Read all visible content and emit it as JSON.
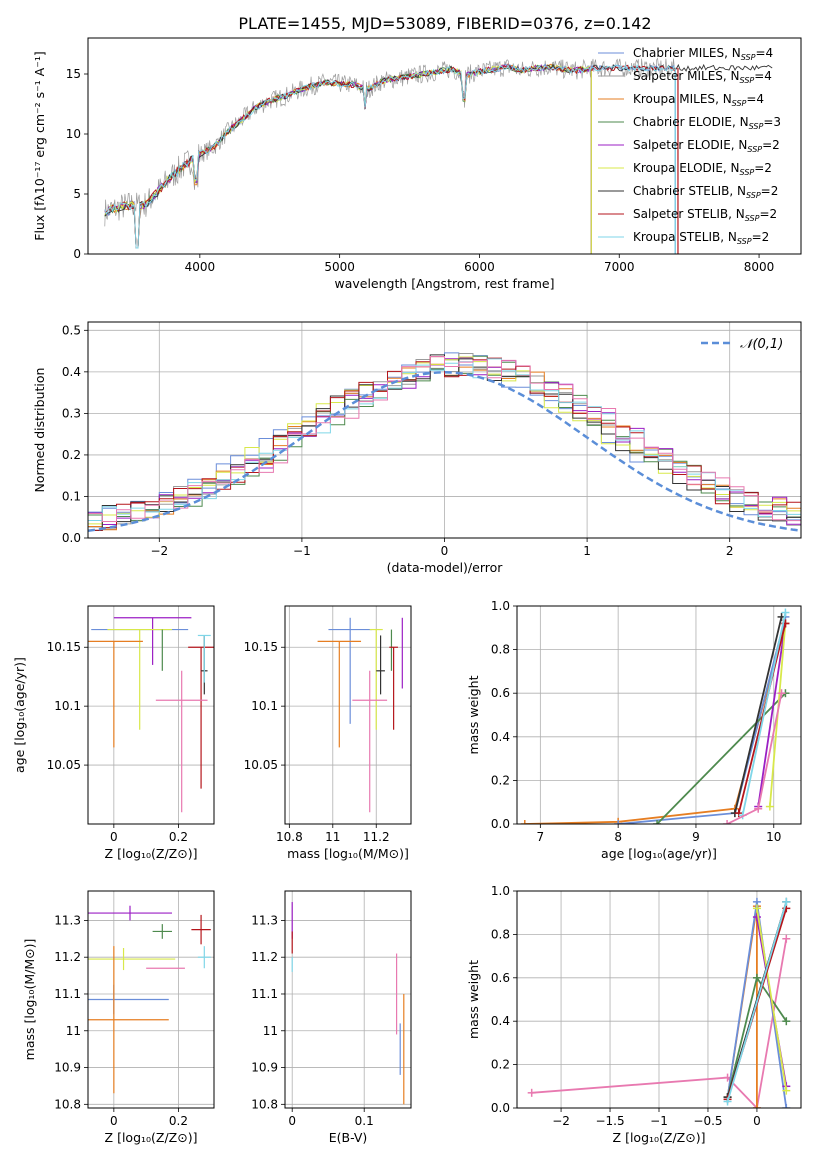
{
  "figure_title": "PLATE=1455, MJD=53089, FIBERID=0376, z=0.142",
  "colors": {
    "Chabrier MILES": "#6b8ed9",
    "Salpeter MILES": "#9b9b9b",
    "Kroupa MILES": "#e67e22",
    "Chabrier ELODIE": "#4e8a4e",
    "Salpeter ELODIE": "#9b1fc4",
    "Kroupa ELODIE": "#d8e84a",
    "Chabrier STELIB": "#333333",
    "Salpeter STELIB": "#b5161c",
    "Kroupa STELIB": "#7fd6e8",
    "extra pink": "#e879b0",
    "gauss": "#5b8ed8"
  },
  "chart_data": [
    {
      "id": "spectrum",
      "type": "line",
      "title": "PLATE=1455, MJD=53089, FIBERID=0376, z=0.142",
      "xlabel": "wavelength [Angstrom, rest frame]",
      "ylabel": "Flux [fλ10⁻¹⁷ erg cm⁻² s⁻¹ A⁻¹]",
      "xlim": [
        3200,
        8300
      ],
      "ylim": [
        0,
        18
      ],
      "xticks": [
        4000,
        5000,
        6000,
        7000,
        8000
      ],
      "yticks": [
        0,
        5,
        10,
        15
      ],
      "grid": false,
      "legend_position": "right",
      "legend": [
        {
          "name": "Chabrier MILES",
          "nssp": "4"
        },
        {
          "name": "Salpeter MILES",
          "nssp": "4"
        },
        {
          "name": "Kroupa MILES",
          "nssp": "4"
        },
        {
          "name": "Chabrier ELODIE",
          "nssp": "3"
        },
        {
          "name": "Salpeter ELODIE",
          "nssp": "2"
        },
        {
          "name": "Kroupa ELODIE",
          "nssp": "2"
        },
        {
          "name": "Chabrier STELIB",
          "nssp": "2"
        },
        {
          "name": "Salpeter STELIB",
          "nssp": "2"
        },
        {
          "name": "Kroupa STELIB",
          "nssp": "2"
        }
      ],
      "data_series": {
        "x": [
          3320,
          3400,
          3500,
          3600,
          3700,
          3800,
          3900,
          4000,
          4100,
          4200,
          4300,
          4400,
          4500,
          4600,
          4700,
          4800,
          4900,
          5000,
          5100,
          5200,
          5300,
          5400,
          5500,
          5600,
          5700,
          5800,
          5900,
          6000,
          6100,
          6200,
          6300,
          6400,
          6500,
          6600,
          6700,
          6800
        ],
        "y": [
          3.5,
          3.8,
          4.1,
          4.0,
          5.2,
          6.5,
          7.5,
          8.3,
          8.9,
          10.2,
          11.2,
          12.2,
          12.8,
          13.1,
          13.6,
          14.0,
          14.3,
          14.2,
          14.1,
          13.7,
          14.4,
          14.6,
          14.8,
          15.0,
          15.2,
          15.4,
          14.9,
          15.2,
          15.4,
          15.6,
          15.3,
          15.5,
          15.6,
          15.4,
          15.3,
          15.5
        ]
      }
    },
    {
      "id": "residuals",
      "type": "bar",
      "xlabel": "(data-model)/error",
      "ylabel": "Normed distribution",
      "xlim": [
        -2.5,
        2.5
      ],
      "ylim": [
        0,
        0.52
      ],
      "xticks": [
        -2,
        -1,
        0,
        1,
        2
      ],
      "yticks": [
        0.0,
        0.1,
        0.2,
        0.3,
        0.4,
        0.5
      ],
      "grid": true,
      "legend_position": "top-right",
      "gauss_label": "𝒩(0,1)",
      "gauss_mu": 0,
      "gauss_sigma": 1
    },
    {
      "id": "age-vs-Z",
      "type": "scatter",
      "xlabel": "Z [log₁₀(Z/Z⊙)]",
      "ylabel": "age  [log₁₀(age/yr)]",
      "xlim": [
        -0.08,
        0.31
      ],
      "ylim": [
        10.0,
        10.185
      ],
      "xticks": [
        0.0,
        0.2
      ],
      "yticks": [
        10.05,
        10.1,
        10.15
      ],
      "grid": true,
      "points": [
        {
          "series": "Chabrier MILES",
          "x": 0.08,
          "y": 10.165,
          "xerr": 0.15,
          "yerr_lo": 0.0,
          "yerr_hi": 0.0
        },
        {
          "series": "Salpeter ELODIE",
          "x": 0.12,
          "y": 10.175,
          "xerr": 0.12,
          "yerr_lo": 0.04,
          "yerr_hi": 0.0
        },
        {
          "series": "Kroupa ELODIE",
          "x": 0.08,
          "y": 10.165,
          "xerr": 0.1,
          "yerr_lo": 0.085,
          "yerr_hi": 0.0
        },
        {
          "series": "Kroupa MILES",
          "x": 0.0,
          "y": 10.155,
          "xerr": 0.09,
          "yerr_lo": 0.09,
          "yerr_hi": 0.0
        },
        {
          "series": "Chabrier ELODIE",
          "x": 0.15,
          "y": 10.165,
          "xerr": 0.0,
          "yerr_lo": 0.035,
          "yerr_hi": 0.0
        },
        {
          "series": "Salpeter STELIB",
          "x": 0.27,
          "y": 10.15,
          "xerr": 0.04,
          "yerr_lo": 0.12,
          "yerr_hi": 0.0
        },
        {
          "series": "Chabrier STELIB",
          "x": 0.28,
          "y": 10.13,
          "xerr": 0.01,
          "yerr_lo": 0.02,
          "yerr_hi": 0.03
        },
        {
          "series": "Kroupa STELIB",
          "x": 0.28,
          "y": 10.16,
          "xerr": 0.02,
          "yerr_lo": 0.04,
          "yerr_hi": 0.0
        },
        {
          "series": "extra pink",
          "x": 0.21,
          "y": 10.105,
          "xerr": 0.08,
          "yerr_lo": 0.095,
          "yerr_hi": 0.025
        }
      ]
    },
    {
      "id": "age-vs-mass",
      "type": "scatter",
      "xlabel": "mass [log₁₀(M/M⊙)]",
      "ylabel": "",
      "xlim": [
        10.78,
        11.36
      ],
      "ylim": [
        10.0,
        10.185
      ],
      "xticks": [
        10.8,
        11.0,
        11.2
      ],
      "yticks": [
        10.05,
        10.1,
        10.15
      ],
      "grid": true,
      "points": [
        {
          "series": "Chabrier MILES",
          "x": 11.08,
          "y": 10.165,
          "xerr": 0.1,
          "yerr_lo": 0.08,
          "yerr_hi": 0.01
        },
        {
          "series": "Kroupa MILES",
          "x": 11.03,
          "y": 10.155,
          "xerr": 0.1,
          "yerr_lo": 0.09,
          "yerr_hi": 0.0
        },
        {
          "series": "Kroupa ELODIE",
          "x": 11.2,
          "y": 10.165,
          "xerr": 0.03,
          "yerr_lo": 0.085,
          "yerr_hi": 0.0
        },
        {
          "series": "Chabrier ELODIE",
          "x": 11.27,
          "y": 10.165,
          "xerr": 0.0,
          "yerr_lo": 0.035,
          "yerr_hi": 0.0
        },
        {
          "series": "Salpeter ELODIE",
          "x": 11.32,
          "y": 10.175,
          "xerr": 0.0,
          "yerr_lo": 0.06,
          "yerr_hi": 0.0
        },
        {
          "series": "Salpeter STELIB",
          "x": 11.28,
          "y": 10.15,
          "xerr": 0.02,
          "yerr_lo": 0.07,
          "yerr_hi": 0.0
        },
        {
          "series": "Chabrier STELIB",
          "x": 11.22,
          "y": 10.13,
          "xerr": 0.02,
          "yerr_lo": 0.02,
          "yerr_hi": 0.03
        },
        {
          "series": "extra pink",
          "x": 11.17,
          "y": 10.105,
          "xerr": 0.08,
          "yerr_lo": 0.095,
          "yerr_hi": 0.025
        }
      ]
    },
    {
      "id": "mass-weight-vs-age",
      "type": "line",
      "xlabel": "age  [log₁₀(age/yr)]",
      "ylabel": "mass weight",
      "xlim": [
        6.7,
        10.35
      ],
      "ylim": [
        0.0,
        1.0
      ],
      "xticks": [
        7,
        8,
        9,
        10
      ],
      "yticks": [
        0.0,
        0.2,
        0.4,
        0.6,
        0.8,
        1.0
      ],
      "grid": true,
      "series": [
        {
          "series": "Kroupa MILES",
          "x": [
            6.8,
            8.0,
            9.5,
            10.15
          ],
          "y": [
            0.0,
            0.01,
            0.07,
            0.92
          ]
        },
        {
          "series": "Chabrier MILES",
          "x": [
            8.0,
            9.5,
            10.15
          ],
          "y": [
            0.0,
            0.05,
            0.95
          ]
        },
        {
          "series": "Chabrier ELODIE",
          "x": [
            8.5,
            10.15
          ],
          "y": [
            0.0,
            0.6
          ]
        },
        {
          "series": "Salpeter ELODIE",
          "x": [
            9.8,
            10.15
          ],
          "y": [
            0.08,
            0.92
          ]
        },
        {
          "series": "Kroupa ELODIE",
          "x": [
            9.95,
            10.15
          ],
          "y": [
            0.08,
            0.92
          ]
        },
        {
          "series": "Chabrier STELIB",
          "x": [
            9.5,
            10.1
          ],
          "y": [
            0.05,
            0.95
          ]
        },
        {
          "series": "Salpeter STELIB",
          "x": [
            9.55,
            10.15
          ],
          "y": [
            0.05,
            0.92
          ]
        },
        {
          "series": "Kroupa STELIB",
          "x": [
            9.6,
            10.15
          ],
          "y": [
            0.04,
            0.97
          ]
        },
        {
          "series": "extra pink",
          "x": [
            9.4,
            9.8,
            10.1
          ],
          "y": [
            0.0,
            0.07,
            0.6
          ]
        }
      ]
    },
    {
      "id": "mass-vs-Z",
      "type": "scatter",
      "xlabel": "Z [log₁₀(Z/Z⊙)]",
      "ylabel": "mass [log₁₀(M/M⊙)]",
      "xlim": [
        -0.08,
        0.31
      ],
      "ylim": [
        10.79,
        11.38
      ],
      "xticks": [
        0.0,
        0.2
      ],
      "yticks": [
        10.8,
        10.9,
        11.0,
        11.1,
        11.2,
        11.3
      ],
      "grid": true,
      "points": [
        {
          "series": "Salpeter ELODIE",
          "x": 0.05,
          "y": 11.32,
          "xerr": 0.13,
          "yerr": 0.02
        },
        {
          "series": "Chabrier ELODIE",
          "x": 0.15,
          "y": 11.27,
          "xerr": 0.03,
          "yerr": 0.02
        },
        {
          "series": "Salpeter STELIB",
          "x": 0.27,
          "y": 11.275,
          "xerr": 0.03,
          "yerr": 0.04
        },
        {
          "series": "Kroupa ELODIE",
          "x": 0.03,
          "y": 11.195,
          "xerr": 0.16,
          "yerr": 0.03
        },
        {
          "series": "Kroupa STELIB",
          "x": 0.28,
          "y": 11.2,
          "xerr": 0.02,
          "yerr": 0.03
        },
        {
          "series": "extra pink",
          "x": 0.16,
          "y": 11.17,
          "xerr": 0.06,
          "yerr": 0.0
        },
        {
          "series": "Chabrier MILES",
          "x": 0.0,
          "y": 11.085,
          "xerr": 0.17,
          "yerr": 0.04
        },
        {
          "series": "Kroupa MILES",
          "x": 0.0,
          "y": 11.03,
          "xerr": 0.17,
          "yerr": 0.2
        }
      ]
    },
    {
      "id": "mass-vs-ebv",
      "type": "scatter",
      "xlabel": "E(B-V)",
      "ylabel": "",
      "xlim": [
        -0.01,
        0.165
      ],
      "ylim": [
        10.79,
        11.38
      ],
      "xticks": [
        0.0,
        0.1
      ],
      "yticks": [
        10.8,
        10.9,
        11.0,
        11.1,
        11.2,
        11.3
      ],
      "grid": true,
      "points": [
        {
          "series": "Salpeter ELODIE",
          "x": 0.0,
          "y": 11.3,
          "yerr": 0.05
        },
        {
          "series": "Salpeter STELIB",
          "x": 0.0,
          "y": 11.24,
          "yerr": 0.03
        },
        {
          "series": "Kroupa STELIB",
          "x": 0.0,
          "y": 11.18,
          "yerr": 0.02
        },
        {
          "series": "extra pink",
          "x": 0.145,
          "y": 11.1,
          "yerr": 0.11
        },
        {
          "series": "Chabrier MILES",
          "x": 0.15,
          "y": 10.95,
          "yerr": 0.07
        },
        {
          "series": "Kroupa MILES",
          "x": 0.155,
          "y": 10.95,
          "yerr": 0.15
        }
      ]
    },
    {
      "id": "mass-weight-vs-Z",
      "type": "line",
      "xlabel": "Z [log₁₀(Z/Z⊙)]",
      "ylabel": "mass weight",
      "xlim": [
        -2.45,
        0.45
      ],
      "ylim": [
        0.0,
        1.0
      ],
      "xticks": [
        -2.0,
        -1.5,
        -1.0,
        -0.5,
        0.0
      ],
      "yticks": [
        0.0,
        0.2,
        0.4,
        0.6,
        0.8,
        1.0
      ],
      "grid": true,
      "series": [
        {
          "series": "extra pink",
          "x": [
            -2.3,
            -0.3,
            0.0,
            0.3
          ],
          "y": [
            0.07,
            0.14,
            0.0,
            0.78
          ]
        },
        {
          "series": "Kroupa MILES",
          "x": [
            -0.3,
            0.0,
            0.0
          ],
          "y": [
            0.05,
            0.93,
            0.0
          ]
        },
        {
          "series": "Chabrier MILES",
          "x": [
            -0.3,
            0.0,
            0.3
          ],
          "y": [
            0.05,
            0.95,
            0.0
          ]
        },
        {
          "series": "Chabrier ELODIE",
          "x": [
            -0.3,
            0.0,
            0.3
          ],
          "y": [
            0.05,
            0.6,
            0.4
          ]
        },
        {
          "series": "Salpeter ELODIE",
          "x": [
            0.0,
            0.3
          ],
          "y": [
            0.88,
            0.1
          ]
        },
        {
          "series": "Kroupa ELODIE",
          "x": [
            0.0,
            0.3
          ],
          "y": [
            0.92,
            0.08
          ]
        },
        {
          "series": "Chabrier STELIB",
          "x": [
            -0.3,
            0.3
          ],
          "y": [
            0.05,
            0.95
          ]
        },
        {
          "series": "Salpeter STELIB",
          "x": [
            -0.3,
            0.3
          ],
          "y": [
            0.04,
            0.92
          ]
        },
        {
          "series": "Kroupa STELIB",
          "x": [
            -0.3,
            0.3
          ],
          "y": [
            0.03,
            0.95
          ]
        }
      ]
    }
  ]
}
